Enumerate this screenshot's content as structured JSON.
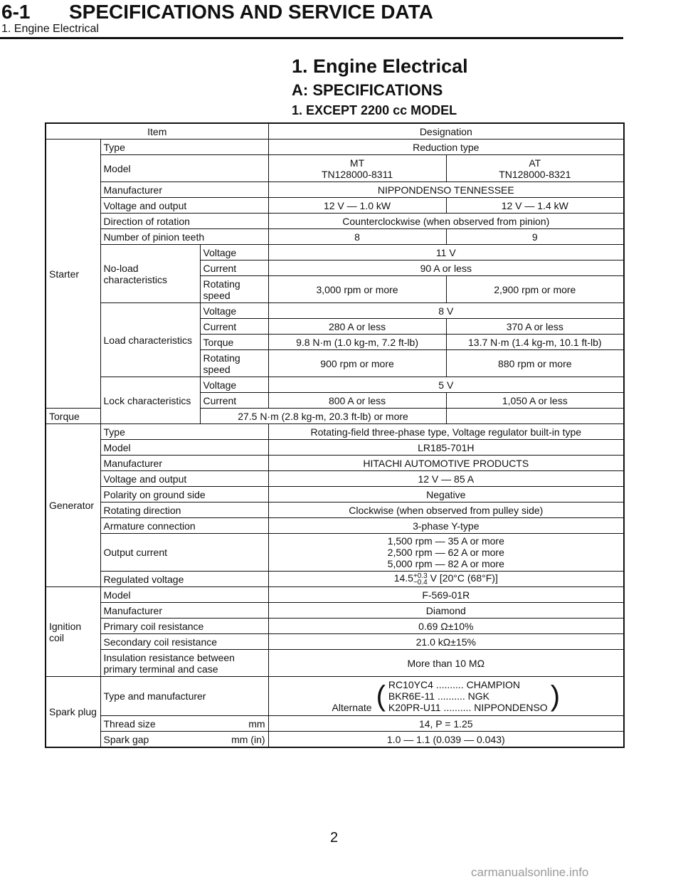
{
  "header": {
    "section_number": "6-1",
    "section_title": "SPECIFICATIONS AND SERVICE DATA",
    "subtitle": "1. Engine Electrical"
  },
  "page_title": "1. Engine Electrical",
  "spec_heading": "A: SPECIFICATIONS",
  "model_heading": "1. EXCEPT 2200 cc MODEL",
  "table": {
    "col_item": "Item",
    "col_designation": "Designation",
    "starter": {
      "group": "Starter",
      "type_label": "Type",
      "type_value": "Reduction type",
      "model_label": "Model",
      "model_mt": "MT",
      "model_mt_num": "TN128000-8311",
      "model_at": "AT",
      "model_at_num": "TN128000-8321",
      "mfr_label": "Manufacturer",
      "mfr_value": "NIPPONDENSO TENNESSEE",
      "vo_label": "Voltage and output",
      "vo_mt": "12 V — 1.0 kW",
      "vo_at": "12 V — 1.4 kW",
      "dir_label": "Direction of rotation",
      "dir_value": "Counterclockwise (when observed from pinion)",
      "teeth_label": "Number of pinion teeth",
      "teeth_mt": "8",
      "teeth_at": "9",
      "noload_label": "No-load characteristics",
      "noload_voltage_label": "Voltage",
      "noload_voltage": "11 V",
      "noload_current_label": "Current",
      "noload_current": "90 A or less",
      "noload_speed_label": "Rotating speed",
      "noload_speed_mt": "3,000 rpm or more",
      "noload_speed_at": "2,900 rpm or more",
      "load_label": "Load characteristics",
      "load_voltage_label": "Voltage",
      "load_voltage": "8 V",
      "load_current_label": "Current",
      "load_current_mt": "280 A or less",
      "load_current_at": "370 A or less",
      "load_torque_label": "Torque",
      "load_torque_mt": "9.8 N·m (1.0 kg-m, 7.2 ft-lb)",
      "load_torque_at": "13.7 N·m (1.4 kg-m, 10.1 ft-lb)",
      "load_speed_label": "Rotating speed",
      "load_speed_mt": "900 rpm or more",
      "load_speed_at": "880 rpm or more",
      "lock_label": "Lock characteristics",
      "lock_voltage_label": "Voltage",
      "lock_voltage": "5 V",
      "lock_current_label": "Current",
      "lock_current_mt": "800 A or less",
      "lock_current_at": "1,050 A or less",
      "lock_torque_label": "Torque",
      "lock_torque": "27.5 N·m (2.8 kg-m, 20.3 ft-lb) or more"
    },
    "generator": {
      "group": "Generator",
      "type_label": "Type",
      "type_value": "Rotating-field three-phase type, Voltage regulator built-in type",
      "model_label": "Model",
      "model_value": "LR185-701H",
      "mfr_label": "Manufacturer",
      "mfr_value": "HITACHI AUTOMOTIVE PRODUCTS",
      "vo_label": "Voltage and output",
      "vo_value": "12 V — 85 A",
      "pol_label": "Polarity on ground side",
      "pol_value": "Negative",
      "rot_label": "Rotating direction",
      "rot_value": "Clockwise (when observed from pulley side)",
      "arm_label": "Armature connection",
      "arm_value": "3-phase Y-type",
      "out_label": "Output current",
      "out_1": "1,500 rpm — 35 A or more",
      "out_2": "2,500 rpm — 62 A or more",
      "out_3": "5,000 rpm — 82 A or more",
      "reg_label": "Regulated voltage",
      "reg_base": "14.5",
      "reg_plus": "+0.3",
      "reg_minus": "−0.4",
      "reg_rest": " V [20°C (68°F)]"
    },
    "ignition": {
      "group": "Ignition coil",
      "model_label": "Model",
      "model_value": "F-569-01R",
      "mfr_label": "Manufacturer",
      "mfr_value": "Diamond",
      "prim_label": "Primary coil resistance",
      "prim_value": "0.69 Ω±10%",
      "sec_label": "Secondary coil resistance",
      "sec_value": "21.0 kΩ±15%",
      "ins_label": "Insulation resistance between primary terminal and case",
      "ins_value": "More than 10 MΩ"
    },
    "spark": {
      "group": "Spark plug",
      "type_label": "Type and manufacturer",
      "type_1": "RC10YC4 .......... CHAMPION",
      "alternate_label": "Alternate",
      "alt_1": "BKR6E-11 .......... NGK",
      "alt_2": "K20PR-U11 .......... NIPPONDENSO",
      "thread_label": "Thread size",
      "thread_unit": "mm",
      "thread_value": "14, P = 1.25",
      "gap_label": "Spark gap",
      "gap_unit": "mm (in)",
      "gap_value": "1.0 — 1.1 (0.039 — 0.043)"
    }
  },
  "page_number": "2",
  "watermark": "carmanualsonline.info"
}
